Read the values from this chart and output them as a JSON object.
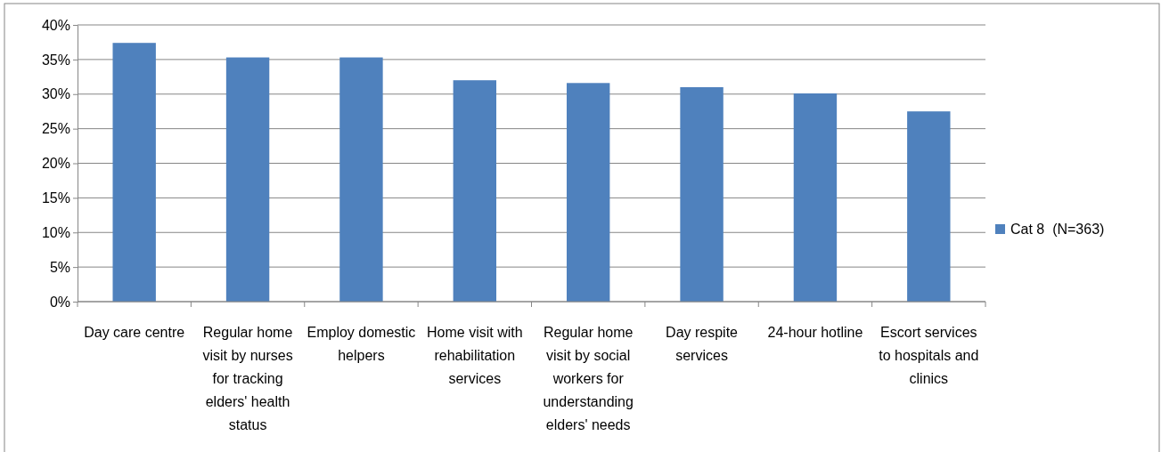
{
  "chart_data": {
    "type": "bar",
    "categories": [
      "Day care centre",
      "Regular home visit by nurses for tracking elders' health status",
      "Employ domestic helpers",
      "Home visit with rehabilitation services",
      "Regular home visit by social workers for understanding elders' needs",
      "Day respite services",
      "24-hour hotline",
      "Escort services to hospitals and clinics"
    ],
    "series": [
      {
        "name": "Cat 8  (N=363)",
        "color": "#4f81bd",
        "values": [
          37.4,
          35.3,
          35.3,
          32.0,
          31.6,
          31.0,
          30.1,
          27.5
        ]
      }
    ],
    "ylim": [
      0,
      40
    ],
    "yticks": [
      {
        "value": 0,
        "label": "0%"
      },
      {
        "value": 5,
        "label": "5%"
      },
      {
        "value": 10,
        "label": "10%"
      },
      {
        "value": 15,
        "label": "15%"
      },
      {
        "value": 20,
        "label": "20%"
      },
      {
        "value": 25,
        "label": "25%"
      },
      {
        "value": 30,
        "label": "30%"
      },
      {
        "value": 35,
        "label": "35%"
      },
      {
        "value": 40,
        "label": "40%"
      }
    ],
    "grid": "y",
    "legend": "right"
  }
}
